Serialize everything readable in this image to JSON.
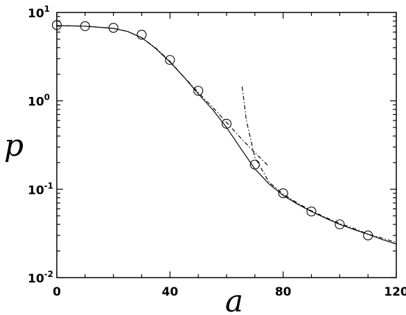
{
  "chart_data": {
    "type": "line",
    "title": "",
    "xlabel": "a",
    "ylabel": "p",
    "xlim": [
      0,
      120
    ],
    "ylim": [
      0.01,
      10
    ],
    "yscale": "log",
    "grid": false,
    "legend": "none",
    "x_ticks": [
      {
        "value": 0,
        "label": "0"
      },
      {
        "value": 40,
        "label": "40"
      },
      {
        "value": 80,
        "label": "80"
      },
      {
        "value": 120,
        "label": "120"
      }
    ],
    "y_ticks": [
      {
        "value": 10,
        "base": "10",
        "exp": "1"
      },
      {
        "value": 1,
        "base": "10",
        "exp": "0"
      },
      {
        "value": 0.1,
        "base": "10",
        "exp": "-1"
      },
      {
        "value": 0.01,
        "base": "10",
        "exp": "-2"
      }
    ],
    "series": [
      {
        "style": "solid",
        "color": "#000000",
        "x": [
          0,
          10,
          20,
          25,
          30,
          35,
          40,
          45,
          50,
          55,
          60,
          65,
          70,
          75,
          80,
          85,
          90,
          95,
          100,
          105,
          110,
          115,
          120
        ],
        "y": [
          7.1,
          7.0,
          6.6,
          6.1,
          5.2,
          3.9,
          2.75,
          1.85,
          1.2,
          0.8,
          0.5,
          0.29,
          0.17,
          0.115,
          0.085,
          0.068,
          0.056,
          0.047,
          0.04,
          0.035,
          0.031,
          0.027,
          0.024
        ]
      },
      {
        "style": "dash-dot",
        "color": "#000000",
        "x": [
          0,
          10,
          20,
          25,
          30,
          35,
          40,
          45,
          50,
          55,
          60,
          65,
          70,
          75
        ],
        "y": [
          7.1,
          7.0,
          6.6,
          6.1,
          5.2,
          3.95,
          2.8,
          1.85,
          1.25,
          0.85,
          0.57,
          0.38,
          0.26,
          0.18
        ]
      },
      {
        "style": "dash-dot",
        "color": "#000000",
        "x": [
          65.5,
          67,
          70,
          75,
          80,
          85,
          90,
          95,
          100,
          105,
          110,
          115,
          120
        ],
        "y": [
          1.45,
          0.6,
          0.23,
          0.12,
          0.088,
          0.07,
          0.057,
          0.048,
          0.041,
          0.036,
          0.031,
          0.028,
          0.025
        ]
      },
      {
        "style": "markers",
        "marker": "open-circle",
        "color": "#000000",
        "x": [
          0,
          10,
          20,
          30,
          40,
          50,
          60,
          70,
          80,
          90,
          100,
          110
        ],
        "y": [
          7.2,
          7.0,
          6.7,
          5.6,
          2.9,
          1.3,
          0.55,
          0.19,
          0.09,
          0.056,
          0.04,
          0.03
        ]
      }
    ]
  }
}
